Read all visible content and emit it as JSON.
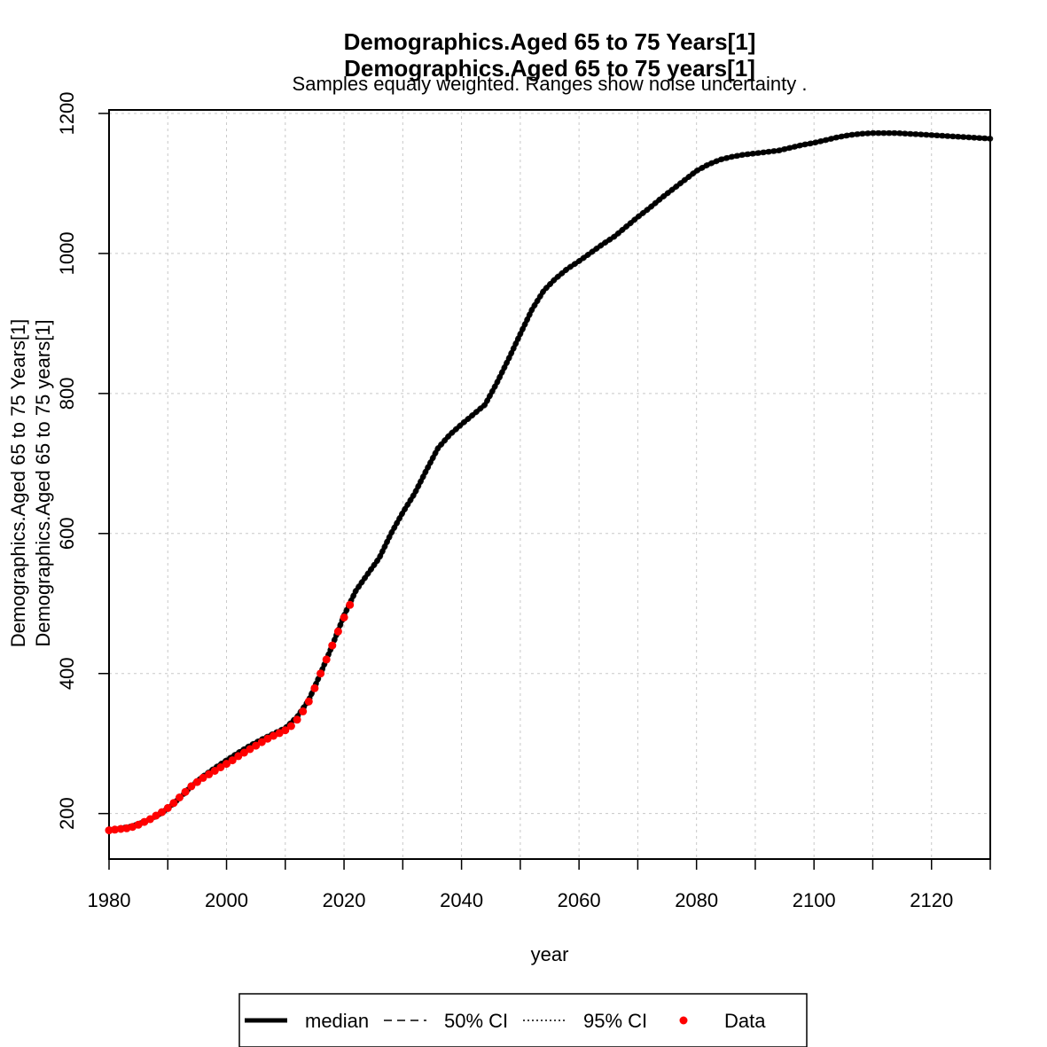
{
  "chart_data": {
    "type": "line",
    "title_lines": [
      "Demographics.Aged 65 to 75 Years[1]",
      "Demographics.Aged 65 to 75 years[1]"
    ],
    "subtitle": "Samples equaly weighted. Ranges show  noise uncertainty .",
    "xlabel": "year",
    "ylabel_lines": [
      "Demographics.Aged 65 to 75 Years[1]",
      "Demographics.Aged 65 to 75 years[1]"
    ],
    "xlim": [
      1980,
      2130
    ],
    "ylim": [
      135,
      1205
    ],
    "x_ticks": [
      1980,
      1990,
      2000,
      2010,
      2020,
      2030,
      2040,
      2050,
      2060,
      2070,
      2080,
      2090,
      2100,
      2110,
      2120,
      2130
    ],
    "x_tick_labels": [
      "1980",
      "2000",
      "2020",
      "2040",
      "2060",
      "2080",
      "2100",
      "2120"
    ],
    "x_tick_label_values": [
      1980,
      2000,
      2020,
      2040,
      2060,
      2080,
      2100,
      2120
    ],
    "y_ticks": [
      200,
      400,
      600,
      800,
      1000,
      1200
    ],
    "y_tick_labels": [
      "200",
      "400",
      "600",
      "800",
      "1000",
      "1200"
    ],
    "grid": true,
    "legend_position": "bottom",
    "legend": [
      {
        "label": "median",
        "style": "solid"
      },
      {
        "label": "50% CI",
        "style": "dashed"
      },
      {
        "label": "95% CI",
        "style": "dotted"
      },
      {
        "label": "Data",
        "style": "point"
      }
    ],
    "colors": {
      "median": "#000000",
      "data": "#ff0000",
      "grid": "#c8c8c8"
    },
    "series": [
      {
        "name": "median",
        "x": [
          1980,
          1982,
          1984,
          1986,
          1988,
          1990,
          1992,
          1994,
          1996,
          1998,
          2000,
          2002,
          2004,
          2006,
          2008,
          2010,
          2012,
          2014,
          2016,
          2018,
          2020,
          2022,
          2024,
          2026,
          2028,
          2030,
          2032,
          2034,
          2036,
          2038,
          2040,
          2042,
          2044,
          2046,
          2048,
          2050,
          2052,
          2054,
          2056,
          2058,
          2060,
          2062,
          2064,
          2066,
          2068,
          2070,
          2072,
          2074,
          2076,
          2078,
          2080,
          2082,
          2084,
          2086,
          2088,
          2090,
          2092,
          2094,
          2096,
          2098,
          2100,
          2102,
          2104,
          2106,
          2108,
          2110,
          2112,
          2114,
          2116,
          2118,
          2120,
          2122,
          2124,
          2126,
          2128,
          2130
        ],
        "y": [
          177,
          179,
          182,
          188,
          196,
          207,
          222,
          239,
          253,
          265,
          276,
          287,
          297,
          306,
          314,
          322,
          338,
          362,
          400,
          440,
          483,
          518,
          542,
          565,
          600,
          630,
          657,
          690,
          722,
          741,
          756,
          770,
          784,
          815,
          849,
          885,
          920,
          947,
          964,
          978,
          989,
          1001,
          1013,
          1024,
          1038,
          1052,
          1065,
          1079,
          1092,
          1105,
          1118,
          1127,
          1134,
          1138,
          1141,
          1143,
          1145,
          1147,
          1151,
          1155,
          1158,
          1162,
          1166,
          1169,
          1171,
          1172,
          1172,
          1172,
          1171,
          1170,
          1169,
          1168,
          1167,
          1166,
          1165,
          1164
        ]
      },
      {
        "name": "Data",
        "x": [
          1980,
          1981,
          1982,
          1983,
          1984,
          1985,
          1986,
          1987,
          1988,
          1989,
          1990,
          1991,
          1992,
          1993,
          1994,
          1995,
          1996,
          1997,
          1998,
          1999,
          2000,
          2001,
          2002,
          2003,
          2004,
          2005,
          2006,
          2007,
          2008,
          2009,
          2010,
          2011,
          2012,
          2013,
          2014,
          2015,
          2016,
          2017,
          2018,
          2019,
          2020,
          2021
        ],
        "y": [
          176,
          177,
          178,
          179,
          181,
          184,
          188,
          192,
          197,
          202,
          208,
          215,
          223,
          231,
          239,
          245,
          251,
          256,
          261,
          266,
          271,
          276,
          282,
          287,
          292,
          297,
          302,
          307,
          311,
          315,
          319,
          325,
          334,
          346,
          360,
          379,
          400,
          420,
          440,
          460,
          480,
          498
        ]
      }
    ]
  }
}
